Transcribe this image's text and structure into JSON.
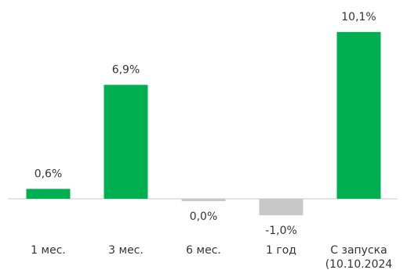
{
  "chart_data": {
    "type": "bar",
    "categories": [
      "1 мес.",
      "3 мес.",
      "6 мес.",
      "1 год",
      "С запуска\n(10.10.2024"
    ],
    "values": [
      0.6,
      6.9,
      0.0,
      -1.0,
      10.1
    ],
    "data_labels": [
      "0,6%",
      "6,9%",
      "0,0%",
      "-1,0%",
      "10,1%"
    ],
    "title": "",
    "xlabel": "",
    "ylabel": "",
    "ylim": [
      -1.0,
      10.1
    ],
    "grid": false,
    "legend": "none",
    "colors": {
      "positive": "#00B050",
      "non_positive": "#C8C8C8",
      "baseline": "#C8C8C8",
      "text": "#333333"
    }
  }
}
